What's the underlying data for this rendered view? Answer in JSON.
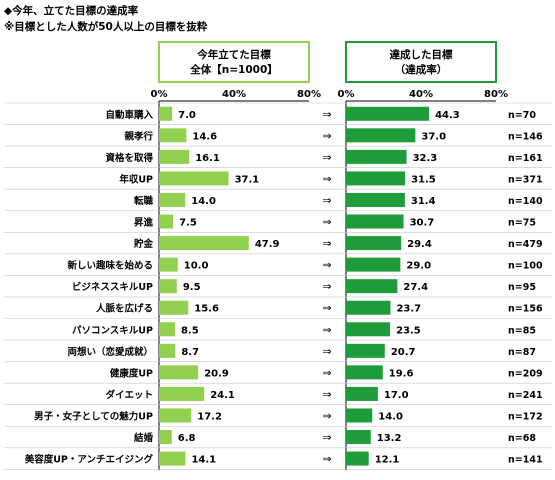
{
  "title_line1": "◆今年、立てた目標の達成率",
  "title_line2": "※目標とした人数が50人以上の目標を抜粋",
  "arrow_symbol": "⇒",
  "colors": {
    "left_bar": "#92d050",
    "right_bar": "#1e9b3a",
    "left_header_border": "#92d050",
    "right_header_border": "#1e9b3a"
  },
  "chart_data": [
    {
      "type": "bar",
      "orientation": "horizontal",
      "title_lines": [
        "今年立てた目標",
        "全体【n=1000】"
      ],
      "xlim": [
        0,
        80
      ],
      "xticks": [
        "0%",
        "40%",
        "80%"
      ],
      "categories": [
        "自動車購入",
        "親孝行",
        "資格を取得",
        "年収UP",
        "転職",
        "昇進",
        "貯金",
        "新しい趣味を始める",
        "ビジネススキルUP",
        "人脈を広げる",
        "パソコンスキルUP",
        "両想い（恋愛成就）",
        "健康度UP",
        "ダイエット",
        "男子・女子としての魅力UP",
        "結婚",
        "美容度UP・アンチエイジング"
      ],
      "values": [
        7.0,
        14.6,
        16.1,
        37.1,
        14.0,
        7.5,
        47.9,
        10.0,
        9.5,
        15.6,
        8.5,
        8.7,
        20.9,
        24.1,
        17.2,
        6.8,
        14.1
      ],
      "value_labels": [
        "7.0",
        "14.6",
        "16.1",
        "37.1",
        "14.0",
        "7.5",
        "47.9",
        "10.0",
        "9.5",
        "15.6",
        "8.5",
        "8.7",
        "20.9",
        "24.1",
        "17.2",
        "6.8",
        "14.1"
      ]
    },
    {
      "type": "bar",
      "orientation": "horizontal",
      "title_lines": [
        "達成した目標",
        "（達成率）"
      ],
      "xlim": [
        0,
        80
      ],
      "xticks": [
        "0%",
        "40%",
        "80%"
      ],
      "categories": [
        "自動車購入",
        "親孝行",
        "資格を取得",
        "年収UP",
        "転職",
        "昇進",
        "貯金",
        "新しい趣味を始める",
        "ビジネススキルUP",
        "人脈を広げる",
        "パソコンスキルUP",
        "両想い（恋愛成就）",
        "健康度UP",
        "ダイエット",
        "男子・女子としての魅力UP",
        "結婚",
        "美容度UP・アンチエイジング"
      ],
      "values": [
        44.3,
        37.0,
        32.3,
        31.5,
        31.4,
        30.7,
        29.4,
        29.0,
        27.4,
        23.7,
        23.5,
        20.7,
        19.6,
        17.0,
        14.0,
        13.2,
        12.1
      ],
      "value_labels": [
        "44.3",
        "37.0",
        "32.3",
        "31.5",
        "31.4",
        "30.7",
        "29.4",
        "29.0",
        "27.4",
        "23.7",
        "23.5",
        "20.7",
        "19.6",
        "17.0",
        "14.0",
        "13.2",
        "12.1"
      ],
      "n_labels": [
        "n=70",
        "n=146",
        "n=161",
        "n=371",
        "n=140",
        "n=75",
        "n=479",
        "n=100",
        "n=95",
        "n=156",
        "n=85",
        "n=87",
        "n=209",
        "n=241",
        "n=172",
        "n=68",
        "n=141"
      ]
    }
  ]
}
